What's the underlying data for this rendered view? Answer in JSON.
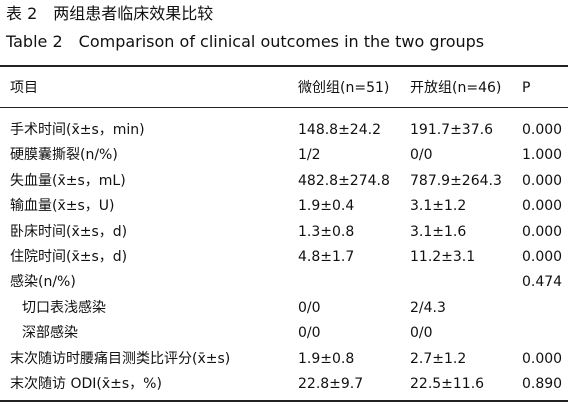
{
  "title_cn": "表 2　两组患者临床效果比较",
  "title_en": "Table 2　Comparison of clinical outcomes in the two groups",
  "table": {
    "header": [
      "项目",
      "微创组(n=51)",
      "开放组(n=46)",
      "P"
    ],
    "rows": [
      {
        "cells": [
          "手术时间(x̄±s，min)",
          "148.8±24.2",
          "191.7±37.6",
          "0.000"
        ]
      },
      {
        "cells": [
          "硬膜囊撕裂(n/%)",
          "1/2",
          "0/0",
          "1.000"
        ]
      },
      {
        "cells": [
          "失血量(x̄±s，mL)",
          "482.8±274.8",
          "787.9±264.3",
          "0.000"
        ]
      },
      {
        "cells": [
          "输血量(x̄±s，U)",
          "1.9±0.4",
          "3.1±1.2",
          "0.000"
        ]
      },
      {
        "cells": [
          "卧床时间(x̄±s，d)",
          "1.3±0.8",
          "3.1±1.6",
          "0.000"
        ]
      },
      {
        "cells": [
          "住院时间(x̄±s，d)",
          "4.8±1.7",
          "11.2±3.1",
          "0.000"
        ]
      },
      {
        "cells": [
          "感染(n/%)",
          null,
          null,
          "0.474"
        ],
        "subrows": [
          [
            "切口表浅感染",
            "0/0",
            "2/4.3"
          ],
          [
            "深部感染",
            "0/0",
            "0/0"
          ]
        ]
      },
      {
        "cells": [
          "末次随访时腰痛目测类比评分(x̄±s)",
          "1.9±0.8",
          "2.7±1.2",
          "0.000"
        ]
      },
      {
        "cells": [
          "末次随访 ODI(x̄±s，%)",
          "22.8±9.7",
          "22.5±11.6",
          "0.890"
        ]
      }
    ]
  }
}
